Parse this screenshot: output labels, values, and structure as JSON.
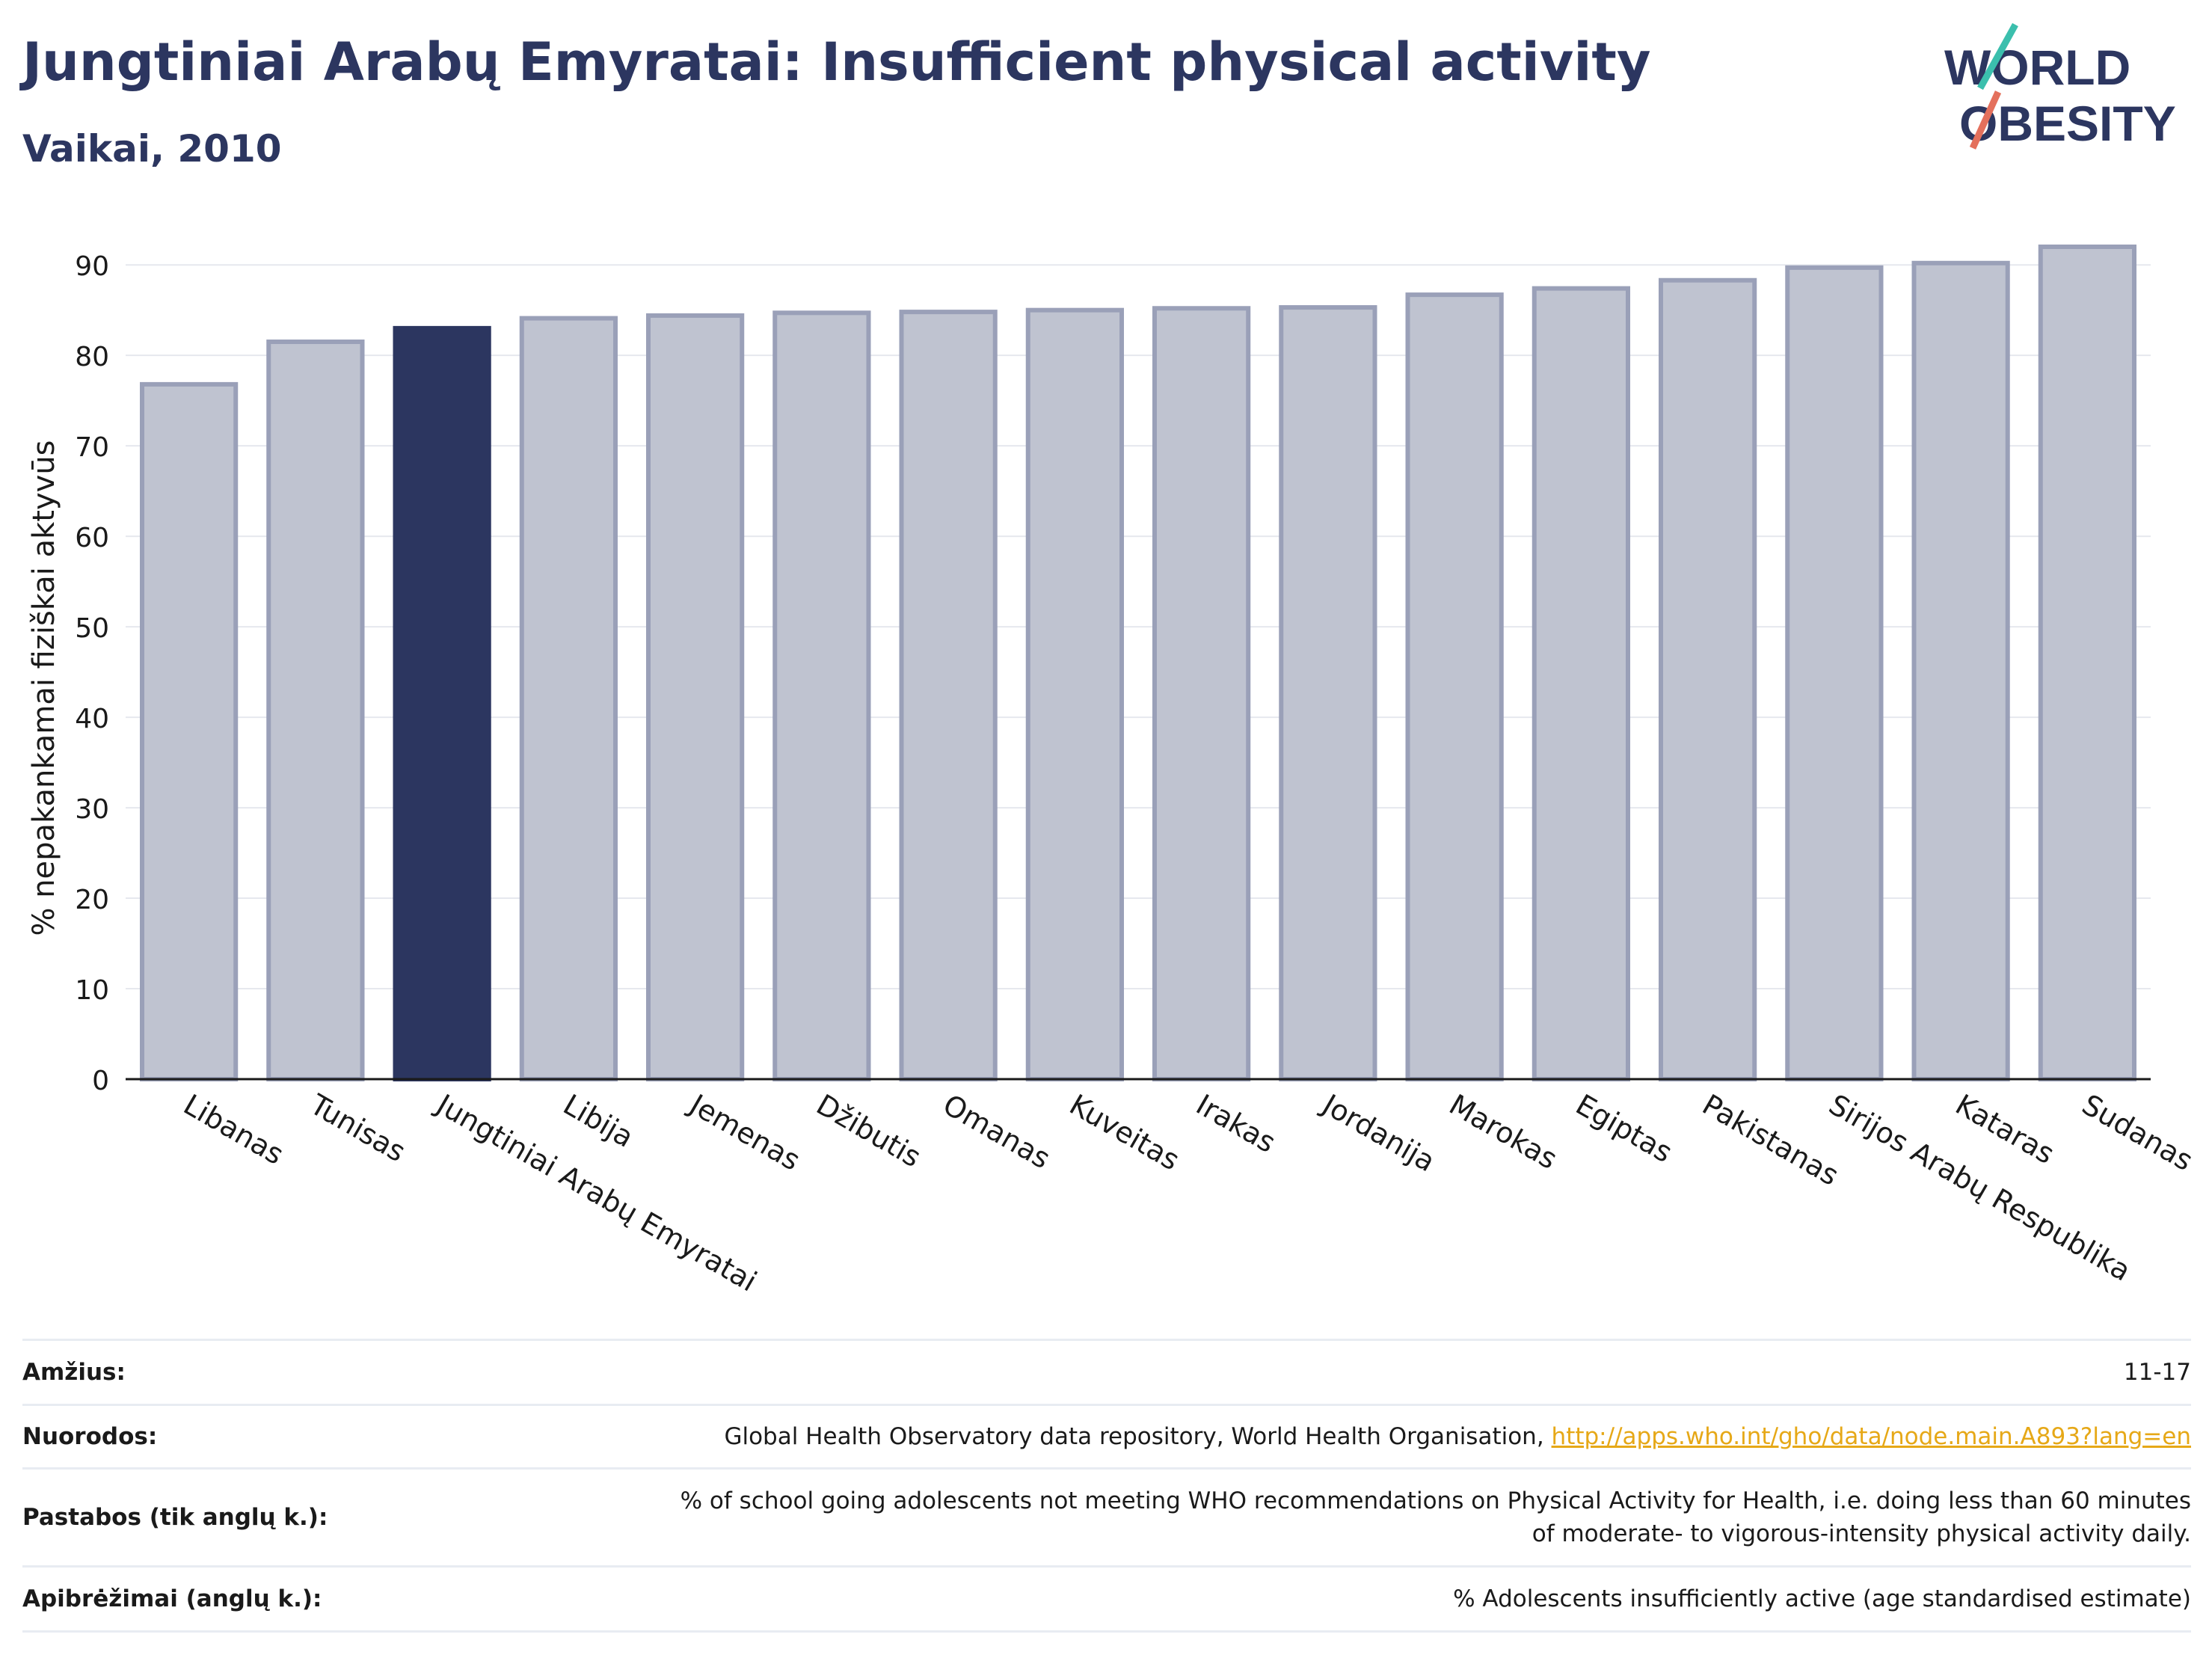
{
  "header": {
    "title": "Jungtiniai Arabų Emyratai: Insufficient physical activity",
    "subtitle": "Vaikai, 2010"
  },
  "logo": {
    "line1": "WORLD",
    "line2": "OBESITY"
  },
  "colors": {
    "highlight": "#2c3660",
    "bar": "#bfc3d0",
    "bar_edge": "#9aa0b8",
    "title": "#2c3660",
    "link": "#e6a817"
  },
  "chart_data": {
    "type": "bar",
    "ylabel": "% nepakankamai fiziškai aktyvūs",
    "ylim": [
      0,
      92
    ],
    "yticks": [
      0,
      10,
      20,
      30,
      40,
      50,
      60,
      70,
      80,
      90
    ],
    "grid": true,
    "highlight": "Jungtiniai Arabų Emyratai",
    "categories": [
      "Libanas",
      "Tunisas",
      "Jungtiniai Arabų Emyratai",
      "Libija",
      "Jemenas",
      "Džibutis",
      "Omanas",
      "Kuveitas",
      "Irakas",
      "Jordanija",
      "Marokas",
      "Egiptas",
      "Pakistanas",
      "Sirijos Arabų Respublika",
      "Kataras",
      "Sudanas"
    ],
    "values": [
      76.8,
      81.5,
      83.0,
      84.1,
      84.4,
      84.7,
      84.8,
      85.0,
      85.2,
      85.3,
      86.7,
      87.4,
      88.3,
      89.7,
      90.2,
      92.0
    ]
  },
  "footer": [
    {
      "label": "Amžius:",
      "value": "11-17"
    },
    {
      "label": "Nuorodos:",
      "value": "Global Health Observatory data repository, World Health Organisation, ",
      "link": "http://apps.who.int/gho/data/node.main.A893?lang=en"
    },
    {
      "label": "Pastabos (tik anglų k.):",
      "value": "% of school going adolescents not meeting WHO recommendations on Physical Activity for Health, i.e. doing less than 60 minutes of moderate- to vigorous-intensity physical activity daily."
    },
    {
      "label": "Apibrėžimai (anglų k.):",
      "value": "% Adolescents insufficiently active (age standardised estimate)"
    }
  ]
}
